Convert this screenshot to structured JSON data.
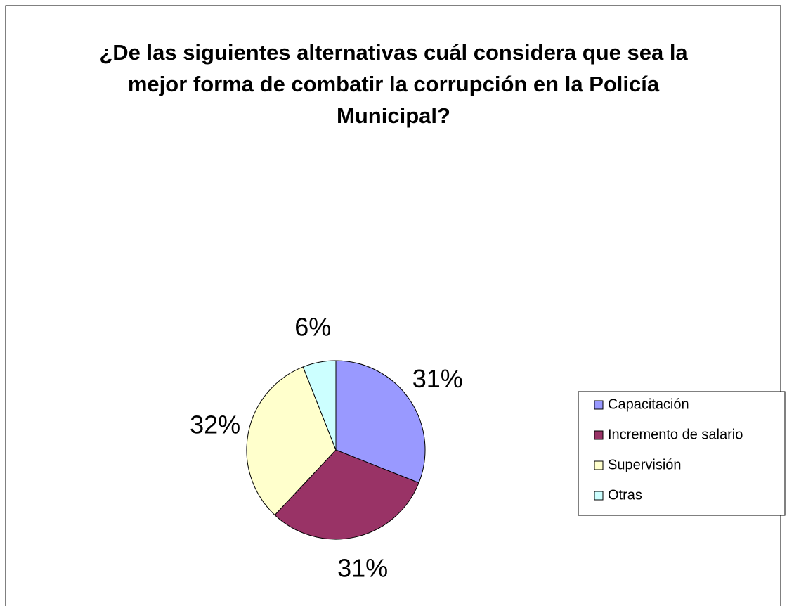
{
  "chart_data": {
    "type": "pie",
    "title": "¿De las siguientes alternativas cuál considera que sea la mejor forma de combatir la corrupción en la Policía Municipal?",
    "categories": [
      "Capacitación",
      "Incremento de salario",
      "Supervisión",
      "Otras"
    ],
    "values": [
      31,
      31,
      32,
      6
    ],
    "value_labels": [
      "31%",
      "31%",
      "32%",
      "6%"
    ],
    "colors": [
      "#9999ff",
      "#993366",
      "#ffffcc",
      "#ccffff"
    ],
    "legend": "right"
  }
}
